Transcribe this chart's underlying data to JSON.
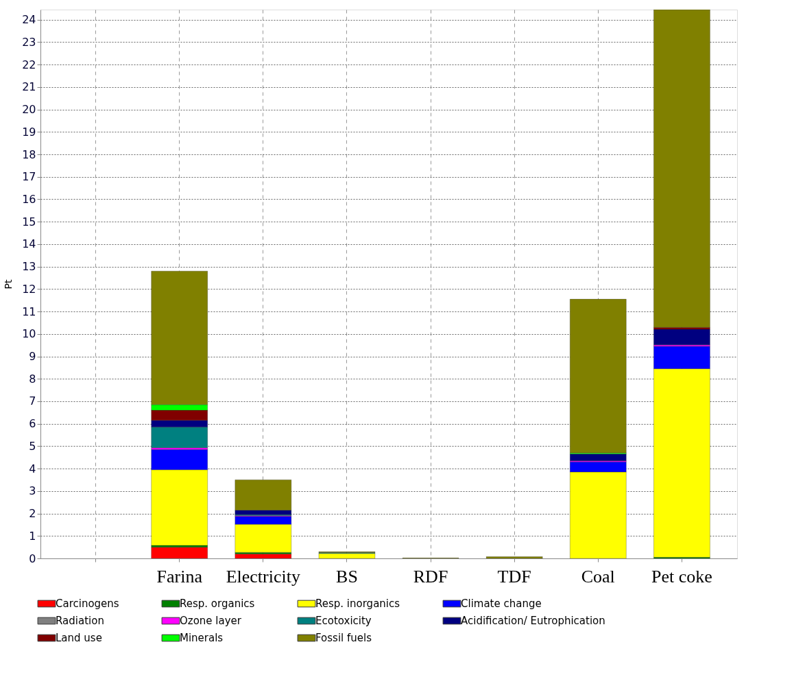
{
  "chart_data": {
    "type": "bar",
    "stacked": true,
    "ylabel": "Pt",
    "categories": [
      null,
      "Farina",
      "Electricity",
      "BS",
      "RDF",
      "TDF",
      "Coal",
      "Pet coke"
    ],
    "ylim": [
      0,
      24.45
    ],
    "yticks": [
      0,
      1,
      2,
      3,
      4,
      5,
      6,
      7,
      8,
      9,
      10,
      11,
      12,
      13,
      14,
      15,
      16,
      17,
      18,
      19,
      20,
      21,
      22,
      23,
      24
    ],
    "grid": true,
    "legend": "bottom",
    "series": [
      {
        "name": "Carcinogens",
        "color": "#ff0000",
        "values": [
          null,
          0.5,
          0.2,
          null,
          null,
          null,
          null,
          null
        ]
      },
      {
        "name": "Resp. organics",
        "color": "#008000",
        "values": [
          null,
          0.08,
          0.07,
          null,
          null,
          null,
          null,
          0.05
        ]
      },
      {
        "name": "Resp. inorganics",
        "color": "#ffff00",
        "values": [
          null,
          3.37,
          1.25,
          0.22,
          null,
          null,
          3.85,
          8.4
        ]
      },
      {
        "name": "Climate change",
        "color": "#0000ff",
        "values": [
          null,
          0.9,
          0.35,
          null,
          null,
          null,
          0.45,
          1.0
        ]
      },
      {
        "name": "Radiation",
        "color": "#808080",
        "values": [
          null,
          null,
          null,
          null,
          null,
          null,
          null,
          null
        ]
      },
      {
        "name": "Ozone layer",
        "color": "#ff00ff",
        "values": [
          null,
          0.08,
          0.03,
          null,
          null,
          null,
          0.05,
          0.06
        ]
      },
      {
        "name": "Ecotoxicity",
        "color": "#008080",
        "values": [
          null,
          0.92,
          0.05,
          0.04,
          null,
          null,
          null,
          null
        ]
      },
      {
        "name": "Acidification/ Eutrophication",
        "color": "#000080",
        "values": [
          null,
          0.3,
          0.2,
          null,
          null,
          null,
          0.3,
          0.7
        ]
      },
      {
        "name": "Land use",
        "color": "#800000",
        "values": [
          null,
          0.45,
          null,
          null,
          null,
          null,
          null,
          0.08
        ]
      },
      {
        "name": "Minerals",
        "color": "#00ff00",
        "values": [
          null,
          0.25,
          null,
          null,
          null,
          null,
          0.05,
          null
        ]
      },
      {
        "name": "Fossil fuels",
        "color": "#808000",
        "values": [
          null,
          5.95,
          1.35,
          0.04,
          0.02,
          0.08,
          6.85,
          14.16
        ]
      }
    ]
  }
}
